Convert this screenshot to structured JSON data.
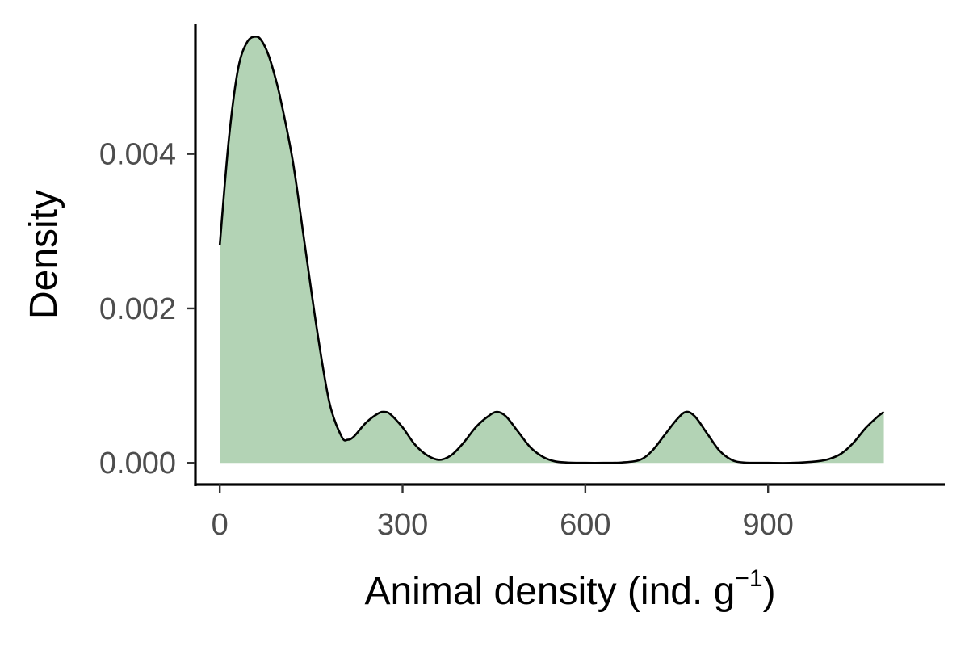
{
  "chart_data": {
    "type": "area",
    "xlabel": "Animal density (ind. g",
    "xlabel_superscript": "−1",
    "xlabel_suffix": ")",
    "ylabel": "Density",
    "xlim": [
      -40,
      1190
    ],
    "ylim": [
      -0.00028,
      0.00568
    ],
    "x_ticks": [
      0,
      300,
      600,
      900
    ],
    "x_tick_labels": [
      "0",
      "300",
      "600",
      "900"
    ],
    "y_ticks": [
      0.0,
      0.002,
      0.004
    ],
    "y_tick_labels": [
      "0.000",
      "0.002",
      "0.004"
    ],
    "grid": false,
    "legend": "none",
    "fill_color": "#b3d3b5",
    "line_color": "#000000",
    "x": [
      0,
      15,
      30,
      45,
      60,
      70,
      80,
      90,
      100,
      120,
      140,
      160,
      180,
      200,
      210,
      220,
      240,
      260,
      270,
      280,
      300,
      320,
      340,
      360,
      380,
      400,
      420,
      440,
      455,
      470,
      490,
      510,
      530,
      550,
      570,
      600,
      630,
      660,
      690,
      710,
      730,
      750,
      765,
      780,
      800,
      820,
      840,
      860,
      900,
      940,
      980,
      1000,
      1020,
      1040,
      1060,
      1080,
      1090
    ],
    "y": [
      0.00282,
      0.0042,
      0.0051,
      0.00545,
      0.00552,
      0.00545,
      0.00528,
      0.00502,
      0.0047,
      0.0039,
      0.0028,
      0.0017,
      0.00078,
      0.00034,
      0.0003,
      0.00034,
      0.00052,
      0.00064,
      0.00066,
      0.00063,
      0.00046,
      0.00024,
      0.0001,
      4e-05,
      0.0001,
      0.00026,
      0.00046,
      0.0006,
      0.00066,
      0.0006,
      0.0004,
      0.0002,
      8e-05,
      2e-05,
      5e-06,
      0.0,
      0.0,
      5e-06,
      4e-05,
      0.00016,
      0.00036,
      0.00056,
      0.00066,
      0.0006,
      0.00038,
      0.00016,
      4e-05,
      5e-06,
      0.0,
      0.0,
      2e-05,
      5e-05,
      0.00012,
      0.00026,
      0.00045,
      0.0006,
      0.00066
    ]
  }
}
